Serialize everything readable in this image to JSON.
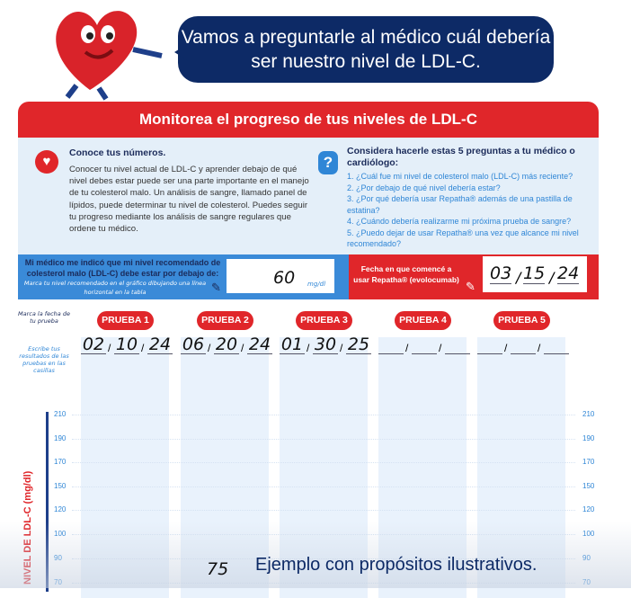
{
  "mascot": {
    "icon": "heart-mascot"
  },
  "bubble": {
    "text": "Vamos a preguntarle al médico cuál debería ser nuestro nivel de LDL-C."
  },
  "banner": {
    "title": "Monitorea el progreso de tus niveles de LDL-C"
  },
  "left": {
    "icon": "heart-icon",
    "title": "Conoce tus números.",
    "body": "Conocer tu nivel actual de LDL-C y aprender debajo de qué nivel debes estar puede ser una parte importante en el manejo de tu colesterol malo. Un análisis de sangre, llamado panel de lípidos, puede determinar tu nivel de colesterol. Puedes seguir tu progreso mediante los análisis de sangre regulares que ordene tu médico."
  },
  "right": {
    "icon": "question-icon",
    "title": "Considera hacerle estas 5 preguntas a tu médico o cardiólogo:",
    "questions": [
      "1. ¿Cuál fue mi nivel de colesterol malo (LDL-C) más reciente?",
      "2. ¿Por debajo de qué nivel debería estar?",
      "3. ¿Por qué debería usar Repatha® además de una pastilla de estatina?",
      "4. ¿Cuándo debería realizarme mi próxima prueba de sangre?",
      "5. ¿Puedo dejar de usar Repatha® una vez que alcance mi nivel recomendado?"
    ]
  },
  "goal": {
    "label": "Mi médico me indicó que mi nivel recomendado de colesterol malo (LDL-C) debe estar por debajo de:",
    "hint": "Marca tu nivel recomendado en el gráfico dibujando una línea horizontal en la tabla",
    "value": "60",
    "unit": "mg/dl"
  },
  "start": {
    "label": "Fecha en que comencé a usar Repatha® (evolocumab)",
    "month": "03",
    "day": "15",
    "year": "24"
  },
  "notes": {
    "date_hint": "Marca la fecha de tu prueba",
    "result_hint": "Escribe tus resultados de las pruebas en las casillas"
  },
  "tests": [
    {
      "label": "PRUEBA 1",
      "date": [
        "02",
        "10",
        "24"
      ]
    },
    {
      "label": "PRUEBA 2",
      "date": [
        "06",
        "20",
        "24"
      ]
    },
    {
      "label": "PRUEBA 3",
      "date": [
        "01",
        "30",
        "25"
      ]
    },
    {
      "label": "PRUEBA 4",
      "date": [
        "",
        "",
        ""
      ]
    },
    {
      "label": "PRUEBA 5",
      "date": [
        "",
        "",
        ""
      ]
    }
  ],
  "axis": {
    "label": "NIVEL DE LDL-C (mg/dl)",
    "ticks": [
      "210",
      "190",
      "170",
      "150",
      "120",
      "100",
      "90",
      "70"
    ]
  },
  "handwritten_value": "75",
  "caption": "Ejemplo con propósitos ilustrativos.",
  "colors": {
    "red": "#e0262a",
    "navy": "#0d2a66",
    "blue": "#3a8ad8",
    "light": "#e4eff9"
  }
}
